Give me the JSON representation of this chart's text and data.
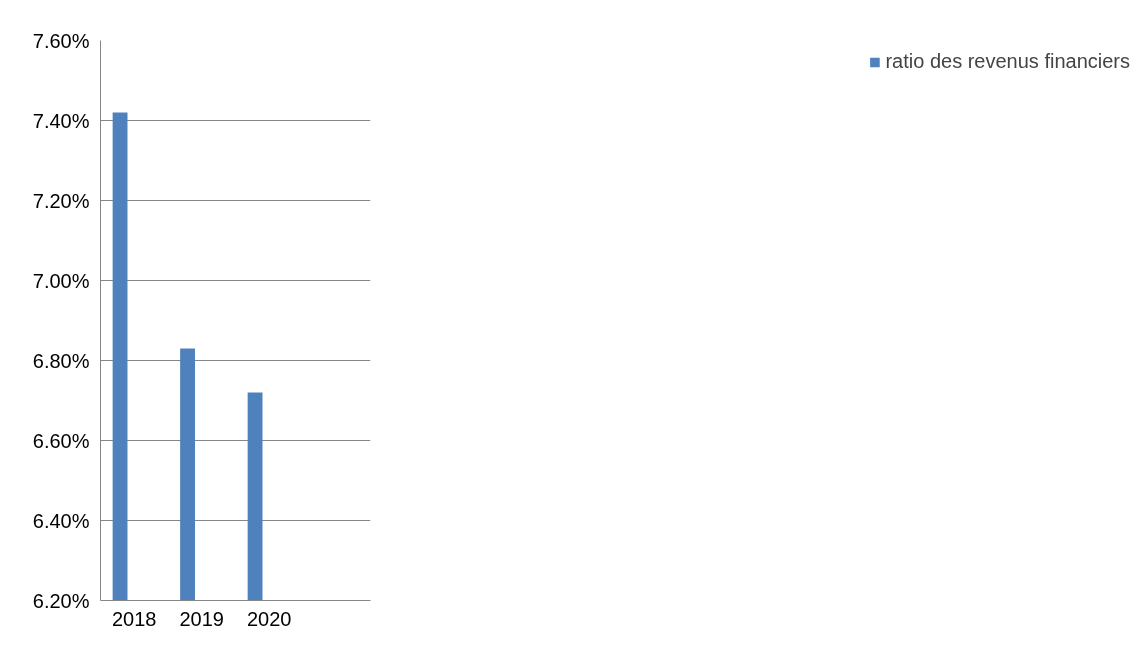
{
  "chart_data": {
    "type": "bar",
    "categories": [
      "2018",
      "2019",
      "2020",
      null
    ],
    "series": [
      {
        "name": "ratio des revenus financiers",
        "color": "#4f81bd",
        "values": [
          7.42,
          6.83,
          6.72,
          null
        ]
      }
    ],
    "ylim": [
      6.2,
      7.6
    ],
    "yticks": [
      {
        "value": 6.2,
        "label": "6.20%"
      },
      {
        "value": 6.4,
        "label": "6.40%"
      },
      {
        "value": 6.6,
        "label": "6.60%"
      },
      {
        "value": 6.8,
        "label": "6.80%"
      },
      {
        "value": 7.0,
        "label": "7.00%"
      },
      {
        "value": 7.2,
        "label": "7.20%"
      },
      {
        "value": 7.4,
        "label": "7.40%"
      },
      {
        "value": 7.6,
        "label": "7.60%"
      }
    ],
    "grid": "y",
    "legend": "right"
  }
}
